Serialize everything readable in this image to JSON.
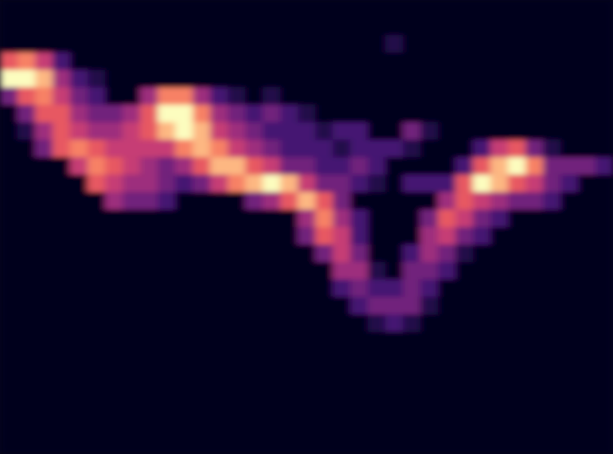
{
  "chart_data": {
    "type": "heatmap",
    "tick_labels": false,
    "color_range": [
      0,
      9
    ],
    "cells": [
      [
        0,
        0,
        0,
        0,
        0,
        0,
        0,
        0,
        0,
        0,
        0,
        0,
        0,
        0,
        0,
        0,
        0,
        0,
        0,
        0,
        0,
        0,
        0,
        0,
        0,
        0,
        0,
        0,
        0,
        0,
        0,
        0,
        0,
        0,
        0
      ],
      [
        0,
        0,
        0,
        0,
        0,
        0,
        0,
        0,
        0,
        0,
        0,
        0,
        0,
        0,
        0,
        0,
        0,
        0,
        0,
        0,
        0,
        0,
        0,
        0,
        0,
        0,
        0,
        0,
        0,
        0,
        0,
        0,
        0,
        0,
        0
      ],
      [
        0,
        0,
        0,
        0,
        0,
        0,
        0,
        0,
        0,
        0,
        0,
        0,
        0,
        0,
        0,
        0,
        0,
        0,
        0,
        0,
        0,
        0,
        1,
        0,
        0,
        0,
        0,
        0,
        0,
        0,
        0,
        0,
        0,
        0,
        0
      ],
      [
        6,
        7,
        5,
        2,
        0,
        0,
        0,
        0,
        0,
        0,
        0,
        0,
        0,
        0,
        0,
        0,
        0,
        0,
        0,
        0,
        0,
        0,
        0,
        0,
        0,
        0,
        0,
        0,
        0,
        0,
        0,
        0,
        0,
        0,
        0
      ],
      [
        9,
        9,
        8,
        4,
        2,
        1,
        0,
        0,
        0,
        0,
        0,
        0,
        0,
        0,
        0,
        0,
        0,
        0,
        0,
        0,
        0,
        0,
        0,
        0,
        0,
        0,
        0,
        0,
        0,
        0,
        0,
        0,
        0,
        0,
        0
      ],
      [
        3,
        6,
        7,
        5,
        3,
        2,
        0,
        0,
        4,
        7,
        7,
        4,
        2,
        1,
        0,
        1,
        0,
        0,
        0,
        0,
        0,
        0,
        0,
        0,
        0,
        0,
        0,
        0,
        0,
        0,
        0,
        0,
        0,
        0,
        0
      ],
      [
        0,
        3,
        6,
        6,
        4,
        3,
        3,
        4,
        6,
        9,
        9,
        7,
        4,
        3,
        2,
        3,
        2,
        1,
        0,
        0,
        0,
        0,
        0,
        0,
        0,
        0,
        0,
        0,
        0,
        0,
        0,
        0,
        0,
        0,
        0
      ],
      [
        0,
        1,
        4,
        6,
        5,
        4,
        4,
        5,
        6,
        8,
        9,
        8,
        5,
        4,
        3,
        2,
        2,
        2,
        1,
        2,
        2,
        0,
        0,
        3,
        1,
        0,
        0,
        0,
        0,
        0,
        0,
        0,
        0,
        0,
        0
      ],
      [
        0,
        0,
        3,
        6,
        7,
        6,
        5,
        5,
        5,
        5,
        7,
        8,
        7,
        5,
        4,
        3,
        2,
        2,
        2,
        1,
        2,
        2,
        2,
        1,
        0,
        0,
        0,
        2,
        5,
        6,
        3,
        1,
        0,
        0,
        0
      ],
      [
        0,
        0,
        0,
        0,
        5,
        7,
        6,
        5,
        4,
        3,
        4,
        6,
        8,
        8,
        6,
        5,
        3,
        3,
        2,
        2,
        3,
        2,
        0,
        0,
        0,
        0,
        2,
        6,
        8,
        9,
        7,
        3,
        3,
        3,
        2
      ],
      [
        0,
        0,
        0,
        0,
        0,
        6,
        5,
        4,
        4,
        3,
        2,
        3,
        5,
        7,
        8,
        9,
        8,
        5,
        3,
        3,
        2,
        1,
        0,
        2,
        2,
        2,
        6,
        9,
        8,
        6,
        5,
        3,
        2,
        0,
        0
      ],
      [
        0,
        0,
        0,
        0,
        0,
        0,
        4,
        3,
        3,
        2,
        0,
        0,
        0,
        0,
        3,
        4,
        6,
        8,
        6,
        3,
        0,
        0,
        0,
        0,
        0,
        4,
        6,
        5,
        4,
        3,
        3,
        2,
        0,
        0,
        0
      ],
      [
        0,
        0,
        0,
        0,
        0,
        0,
        0,
        0,
        0,
        0,
        0,
        0,
        0,
        0,
        0,
        0,
        0,
        4,
        7,
        4,
        2,
        0,
        0,
        0,
        3,
        6,
        5,
        3,
        2,
        0,
        0,
        0,
        0,
        0,
        0
      ],
      [
        0,
        0,
        0,
        0,
        0,
        0,
        0,
        0,
        0,
        0,
        0,
        0,
        0,
        0,
        0,
        0,
        0,
        3,
        6,
        5,
        2,
        0,
        0,
        0,
        4,
        5,
        3,
        2,
        0,
        0,
        0,
        0,
        0,
        0,
        0
      ],
      [
        0,
        0,
        0,
        0,
        0,
        0,
        0,
        0,
        0,
        0,
        0,
        0,
        0,
        0,
        0,
        0,
        0,
        0,
        3,
        5,
        3,
        0,
        0,
        2,
        4,
        3,
        1,
        0,
        0,
        0,
        0,
        0,
        0,
        0,
        0
      ],
      [
        0,
        0,
        0,
        0,
        0,
        0,
        0,
        0,
        0,
        0,
        0,
        0,
        0,
        0,
        0,
        0,
        0,
        0,
        0,
        4,
        4,
        1,
        0,
        3,
        3,
        2,
        0,
        0,
        0,
        0,
        0,
        0,
        0,
        0,
        0
      ],
      [
        0,
        0,
        0,
        0,
        0,
        0,
        0,
        0,
        0,
        0,
        0,
        0,
        0,
        0,
        0,
        0,
        0,
        0,
        0,
        2,
        3,
        2,
        2,
        3,
        2,
        0,
        0,
        0,
        0,
        0,
        0,
        0,
        0,
        0,
        0
      ],
      [
        0,
        0,
        0,
        0,
        0,
        0,
        0,
        0,
        0,
        0,
        0,
        0,
        0,
        0,
        0,
        0,
        0,
        0,
        0,
        0,
        2,
        3,
        3,
        3,
        1,
        0,
        0,
        0,
        0,
        0,
        0,
        0,
        0,
        0,
        0
      ],
      [
        0,
        0,
        0,
        0,
        0,
        0,
        0,
        0,
        0,
        0,
        0,
        0,
        0,
        0,
        0,
        0,
        0,
        0,
        0,
        0,
        0,
        1,
        2,
        1,
        0,
        0,
        0,
        0,
        0,
        0,
        0,
        0,
        0,
        0,
        0
      ],
      [
        0,
        0,
        0,
        0,
        0,
        0,
        0,
        0,
        0,
        0,
        0,
        0,
        0,
        0,
        0,
        0,
        0,
        0,
        0,
        0,
        0,
        0,
        0,
        0,
        0,
        0,
        0,
        0,
        0,
        0,
        0,
        0,
        0,
        0,
        0
      ],
      [
        0,
        0,
        0,
        0,
        0,
        0,
        0,
        0,
        0,
        0,
        0,
        0,
        0,
        0,
        0,
        0,
        0,
        0,
        0,
        0,
        0,
        0,
        0,
        0,
        0,
        0,
        0,
        0,
        0,
        0,
        0,
        0,
        0,
        0,
        0
      ],
      [
        0,
        0,
        0,
        0,
        0,
        0,
        0,
        0,
        0,
        0,
        0,
        0,
        0,
        0,
        0,
        0,
        0,
        0,
        0,
        0,
        0,
        0,
        0,
        0,
        0,
        0,
        0,
        0,
        0,
        0,
        0,
        0,
        0,
        0,
        0
      ],
      [
        0,
        0,
        0,
        0,
        0,
        0,
        0,
        0,
        0,
        0,
        0,
        0,
        0,
        0,
        0,
        0,
        0,
        0,
        0,
        0,
        0,
        0,
        0,
        0,
        0,
        0,
        0,
        0,
        0,
        0,
        0,
        0,
        0,
        0,
        0
      ],
      [
        0,
        0,
        0,
        0,
        0,
        0,
        0,
        0,
        0,
        0,
        0,
        0,
        0,
        0,
        0,
        0,
        0,
        0,
        0,
        0,
        0,
        0,
        0,
        0,
        0,
        0,
        0,
        0,
        0,
        0,
        0,
        0,
        0,
        0,
        0
      ],
      [
        0,
        0,
        0,
        0,
        0,
        0,
        0,
        0,
        0,
        0,
        0,
        0,
        0,
        0,
        0,
        0,
        0,
        0,
        0,
        0,
        0,
        0,
        0,
        0,
        0,
        0,
        0,
        0,
        0,
        0,
        0,
        0,
        0,
        0,
        0
      ],
      [
        0,
        0,
        0,
        0,
        0,
        0,
        0,
        0,
        0,
        0,
        0,
        0,
        0,
        0,
        0,
        0,
        0,
        0,
        0,
        0,
        0,
        0,
        0,
        0,
        0,
        0,
        0,
        0,
        0,
        0,
        0,
        0,
        0,
        0,
        0
      ]
    ]
  }
}
